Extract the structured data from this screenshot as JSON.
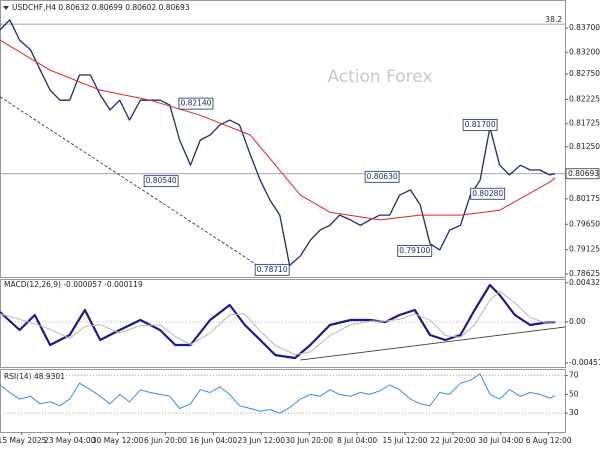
{
  "chart_data": [
    {
      "type": "line",
      "title": "USDCHF,H4  0.80632 0.80699 0.80602 0.80693",
      "watermark": "Action Forex",
      "xlim": [
        0,
        519
      ],
      "ylim": [
        0.78542,
        0.84175
      ],
      "yticks": [
        {
          "value": 0.837,
          "label": "0.83700"
        },
        {
          "value": 0.832,
          "label": "0.83200"
        },
        {
          "value": 0.8275,
          "label": "0.82750"
        },
        {
          "value": 0.82225,
          "label": "0.82225"
        },
        {
          "value": 0.81725,
          "label": "0.81725"
        },
        {
          "value": 0.8125,
          "label": "0.81250"
        },
        {
          "value": 0.80175,
          "label": "0.80175"
        },
        {
          "value": 0.7965,
          "label": "0.79650"
        },
        {
          "value": 0.79125,
          "label": "0.79125"
        },
        {
          "value": 0.78625,
          "label": "0.78625"
        }
      ],
      "series": [
        {
          "name": "USDCHF",
          "color": "#1c2d6b",
          "width": 1.3,
          "x": [
            0,
            9,
            18,
            28,
            37,
            46,
            55,
            64,
            73,
            83,
            92,
            101,
            110,
            119,
            129,
            138,
            147,
            156,
            165,
            175,
            184,
            193,
            202,
            211,
            220,
            230,
            239,
            248,
            257,
            266,
            276,
            285,
            294,
            303,
            312,
            322,
            331,
            340,
            349,
            358,
            367,
            377,
            386,
            395,
            404,
            413,
            423,
            432,
            441,
            450,
            459,
            468,
            478,
            487,
            496,
            505,
            510
          ],
          "values": [
            0.8366,
            0.8387,
            0.8345,
            0.8325,
            0.8283,
            0.8242,
            0.8221,
            0.8221,
            0.8273,
            0.8273,
            0.8232,
            0.8201,
            0.8221,
            0.818,
            0.8221,
            0.8221,
            0.8221,
            0.8211,
            0.8139,
            0.8087,
            0.8139,
            0.8149,
            0.817,
            0.818,
            0.817,
            0.8108,
            0.8056,
            0.8015,
            0.7984,
            0.788,
            0.79,
            0.7932,
            0.7953,
            0.7963,
            0.7984,
            0.7974,
            0.7963,
            0.7974,
            0.7984,
            0.7984,
            0.8025,
            0.8036,
            0.8005,
            0.7925,
            0.7912,
            0.7953,
            0.7963,
            0.8025,
            0.8056,
            0.8165,
            0.8087,
            0.8067,
            0.8087,
            0.8077,
            0.8077,
            0.8067,
            0.80693
          ]
        },
        {
          "name": "MA",
          "color": "#e02424",
          "width": 1,
          "x": [
            0,
            46,
            92,
            138,
            184,
            230,
            276,
            303,
            349,
            386,
            423,
            459,
            505,
            510
          ],
          "values": [
            0.8345,
            0.8283,
            0.8242,
            0.8221,
            0.819,
            0.8149,
            0.8025,
            0.799,
            0.7974,
            0.7984,
            0.7984,
            0.7994,
            0.8052,
            0.8061
          ]
        }
      ],
      "hlines": [
        {
          "value": 0.8378,
          "name": "38.2"
        },
        {
          "value": 0.80693,
          "value_label": "0.80693"
        }
      ],
      "trend_lines": [
        {
          "x": [
            0,
            243
          ],
          "values": [
            0.8228,
            0.7871
          ],
          "dashed": true
        }
      ],
      "annotations": [
        {
          "x": 180,
          "value": 0.8214,
          "label": "0.82140"
        },
        {
          "x": 148,
          "value": 0.8054,
          "label": "0.80540"
        },
        {
          "x": 250,
          "value": 0.7871,
          "label": "0.78710"
        },
        {
          "x": 351,
          "value": 0.8063,
          "label": "0.80630"
        },
        {
          "x": 441,
          "value": 0.817,
          "label": "0.81700"
        },
        {
          "x": 448,
          "value": 0.8028,
          "label": "0.80280"
        },
        {
          "x": 381,
          "value": 0.791,
          "label": "0.79100"
        }
      ]
    },
    {
      "type": "line",
      "title": "MACD(12,26,9) -0.000057 -0.000119",
      "xlim": [
        0,
        519
      ],
      "ylim": [
        -0.00508,
        0.00464
      ],
      "yticks": [
        0.004325,
        {
          "value": 0,
          "label": "0.00"
        },
        -0.004511
      ],
      "series": [
        {
          "name": "MACD",
          "color": "#1a1a8c",
          "width": 2.2,
          "x": [
            0,
            18,
            32,
            46,
            64,
            78,
            92,
            110,
            129,
            147,
            161,
            175,
            193,
            211,
            225,
            239,
            253,
            271,
            285,
            303,
            322,
            340,
            354,
            367,
            381,
            395,
            409,
            423,
            436,
            450,
            459,
            473,
            487,
            501,
            510
          ],
          "values": [
            0.0011,
            -0.00088,
            0.00077,
            -0.00254,
            -0.00144,
            0.00133,
            -0.00199,
            -0.00088,
            0.00022,
            -0.00088,
            -0.00254,
            -0.00254,
            0.00022,
            0.00188,
            -0.00033,
            -0.00199,
            -0.00365,
            -0.00398,
            -0.00254,
            -0.00033,
            0.00022,
            0.00022,
            0,
            0.00077,
            0.00133,
            -0.00144,
            -0.00199,
            -0.00144,
            0.00133,
            0.00409,
            0.00298,
            0.00077,
            -0.00033,
            -6e-05,
            -5.7e-05
          ]
        },
        {
          "name": "Signal",
          "color": "#b8b8b8",
          "width": 1,
          "x": [
            0,
            18,
            32,
            46,
            64,
            78,
            92,
            110,
            129,
            147,
            161,
            175,
            193,
            211,
            225,
            239,
            253,
            271,
            285,
            303,
            322,
            340,
            354,
            367,
            381,
            395,
            409,
            423,
            436,
            450,
            459,
            473,
            487,
            501,
            510
          ],
          "values": [
            0.0009,
            0.0003,
            -0.0002,
            -0.0008,
            -0.0018,
            -0.0005,
            -0.0003,
            -0.0012,
            -0.0004,
            -0.0003,
            -0.0016,
            -0.0025,
            -0.0012,
            0.0008,
            0.0009,
            -0.001,
            -0.0026,
            -0.0036,
            -0.0033,
            -0.0015,
            -0.0003,
            0.0001,
            0.0001,
            0.0003,
            0.0009,
            0.0002,
            -0.0015,
            -0.0017,
            -0.0003,
            0.0024,
            0.0034,
            0.0021,
            0.0005,
            -0.0001,
            -0.000119
          ]
        }
      ],
      "hlines": [
        {
          "value": 0,
          "dotted": true
        }
      ],
      "trend_lines": [
        {
          "x": [
            276,
            519
          ],
          "values": [
            -0.0042,
            -0.00055
          ]
        }
      ]
    },
    {
      "type": "line",
      "title": "RSI(14) 48.9301",
      "xlim": [
        0,
        519
      ],
      "ylim": [
        10,
        76
      ],
      "yticks": [
        70,
        50,
        30
      ],
      "xticks": [
        {
          "value": 20,
          "label": "15 May 2025"
        },
        {
          "value": 64,
          "label": "23 May 04:00"
        },
        {
          "value": 108,
          "label": "30 May 12:00"
        },
        {
          "value": 152,
          "label": "6 Jun 20:00"
        },
        {
          "value": 196,
          "label": "16 Jun 04:00"
        },
        {
          "value": 240,
          "label": "23 Jun 12:00"
        },
        {
          "value": 284,
          "label": "30 Jun 20:00"
        },
        {
          "value": 328,
          "label": "8 Jul 04:00"
        },
        {
          "value": 372,
          "label": "15 Jul 12:00"
        },
        {
          "value": 416,
          "label": "22 Jul 20:00"
        },
        {
          "value": 460,
          "label": "30 Jul 04:00"
        },
        {
          "value": 504,
          "label": "6 Aug 12:00"
        }
      ],
      "series": [
        {
          "name": "RSI",
          "color": "#3a8fd9",
          "width": 1,
          "x": [
            0,
            9,
            18,
            28,
            37,
            46,
            55,
            64,
            73,
            83,
            92,
            101,
            110,
            119,
            129,
            138,
            147,
            156,
            165,
            175,
            184,
            193,
            202,
            211,
            220,
            230,
            239,
            248,
            257,
            266,
            276,
            285,
            294,
            303,
            312,
            322,
            331,
            340,
            349,
            358,
            367,
            377,
            386,
            395,
            404,
            413,
            423,
            432,
            441,
            450,
            459,
            468,
            478,
            487,
            496,
            505,
            510
          ],
          "values": [
            60,
            52,
            45,
            48,
            40,
            42,
            38,
            45,
            62,
            55,
            48,
            40,
            50,
            42,
            55,
            52,
            50,
            48,
            35,
            40,
            55,
            52,
            58,
            50,
            38,
            35,
            32,
            34,
            30,
            36,
            45,
            50,
            48,
            55,
            50,
            48,
            52,
            50,
            54,
            60,
            55,
            45,
            40,
            38,
            52,
            50,
            62,
            65,
            72,
            50,
            45,
            55,
            48,
            52,
            50,
            46,
            48.9301
          ]
        }
      ],
      "hlines": [
        {
          "value": 70,
          "dotted": true
        },
        {
          "value": 30,
          "dotted": true
        }
      ]
    }
  ]
}
